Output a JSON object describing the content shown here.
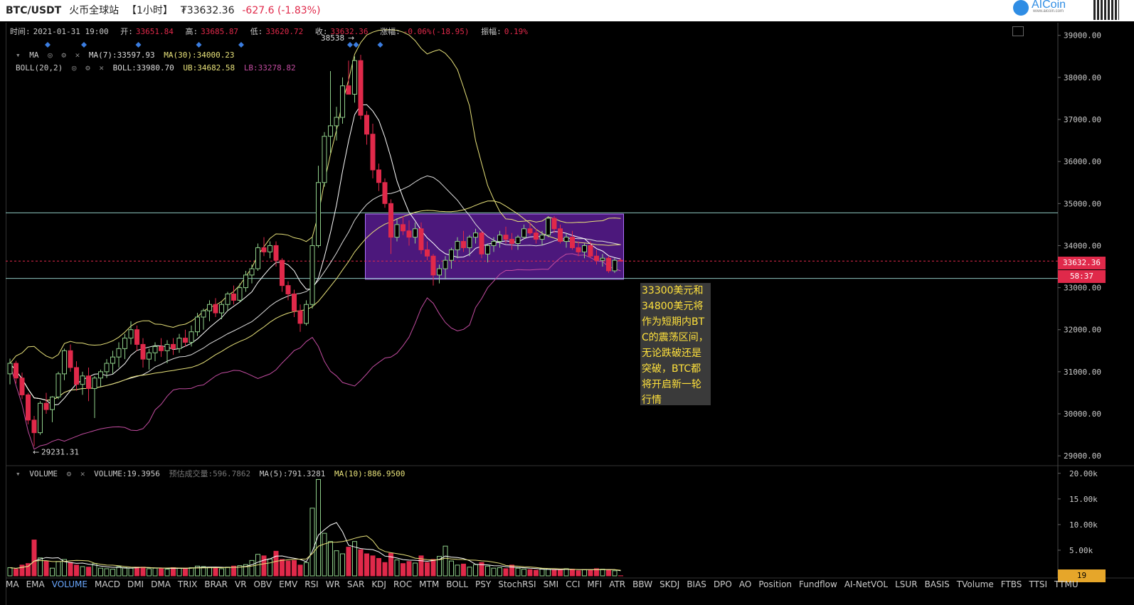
{
  "header": {
    "pair": "BTC/USDT",
    "exchange": "火币全球站",
    "interval": "【1小时】",
    "price": "₮33632.36",
    "change": "-627.6 (-1.83%)",
    "logo_text": "AICoin",
    "logo_sub": "www.aicoin.com"
  },
  "info": {
    "time_label": "时间:",
    "time": "2021-01-31 19:00",
    "open_label": "开:",
    "open": "33651.84",
    "high_label": "高:",
    "high": "33685.87",
    "low_label": "低:",
    "low": "33620.72",
    "close_label": "收:",
    "close": "33632.36",
    "chg_label": "涨幅:",
    "chg": "-0.06%(-18.95)",
    "amp_label": "振幅:",
    "amp": "0.19%"
  },
  "indicators": {
    "ma_name": "MA",
    "ma7": "MA(7):33597.93",
    "ma30": "MA(30):34000.23",
    "boll_name": "BOLL(20,2)",
    "boll": "BOLL:33980.70",
    "ub": "UB:34682.58",
    "lb": "LB:33278.82",
    "vol_name": "VOLUME",
    "vol": "VOLUME:19.3956",
    "vol_est": "预估成交量:596.7862",
    "vol_ma5": "MA(5):791.3281",
    "vol_ma10": "MA(10):886.9500"
  },
  "annotation": "33300美元和34800美元将作为短期内BTC的震荡区间，无论跌破还是突破，BTC都将开启新一轮行情",
  "tags": {
    "price": "33632.36",
    "countdown": "58:37",
    "volume": "19"
  },
  "tabs": [
    "MA",
    "EMA",
    "VOLUME",
    "MACD",
    "DMI",
    "DMA",
    "TRIX",
    "BRAR",
    "VR",
    "OBV",
    "EMV",
    "RSI",
    "WR",
    "SAR",
    "KDJ",
    "ROC",
    "MTM",
    "BOLL",
    "PSY",
    "StochRSI",
    "SMI",
    "CCI",
    "MFI",
    "ATR",
    "BBW",
    "SKDJ",
    "BIAS",
    "DPO",
    "AO",
    "Position",
    "Fundflow",
    "AI-NetVOL",
    "LSUR",
    "BASIS",
    "TVolume",
    "FTBS",
    "TTSI",
    "TTMU"
  ],
  "active_tab": "VOLUME",
  "colors": {
    "up": "#8fcf8a",
    "down": "#e0294a",
    "ma7": "#ffffff",
    "ma30": "#e8e27a",
    "ub": "#e8e27a",
    "lb": "#c24ca0",
    "box": "#8a2be2",
    "hline": "#8ec6c0"
  },
  "chart_data": {
    "type": "candlestick",
    "price_axis": {
      "ylim": [
        28800,
        39300
      ],
      "ticks": [
        29000,
        30000,
        31000,
        32000,
        33000,
        34000,
        35000,
        36000,
        37000,
        38000,
        39000
      ],
      "tick_labels": [
        "29000.00",
        "30000.00",
        "31000.00",
        "32000.00",
        "33000.00",
        "34000.00",
        "35000.00",
        "36000.00",
        "37000.00",
        "38000.00",
        "39000.00"
      ]
    },
    "volume_axis": {
      "ylim": [
        0,
        20800
      ],
      "ticks": [
        5000,
        10000,
        15000,
        20000
      ],
      "tick_labels": [
        "5.00k",
        "10.00k",
        "15.00k",
        "20.00k"
      ]
    },
    "high_marker": {
      "value": 38538,
      "label": "38538"
    },
    "low_marker": {
      "value": 29231.31,
      "label": "29231.31"
    },
    "range_box": {
      "low": 33200,
      "high": 34750
    },
    "hlines": [
      34780,
      33220
    ],
    "current_price": 33632.36,
    "candles": [
      [
        30950,
        31310,
        30700,
        31200
      ],
      [
        31200,
        31260,
        30720,
        30850
      ],
      [
        30850,
        30980,
        30350,
        30450
      ],
      [
        30450,
        30500,
        29750,
        29850
      ],
      [
        29850,
        29950,
        29231,
        29550
      ],
      [
        29550,
        30300,
        29500,
        30250
      ],
      [
        30250,
        30500,
        30000,
        30100
      ],
      [
        30100,
        30420,
        29800,
        30400
      ],
      [
        30400,
        31000,
        30350,
        30950
      ],
      [
        30950,
        31550,
        30800,
        31500
      ],
      [
        31500,
        31650,
        31000,
        31100
      ],
      [
        31100,
        31250,
        30550,
        30700
      ],
      [
        30700,
        31000,
        30450,
        30900
      ],
      [
        30900,
        31100,
        30300,
        30600
      ],
      [
        30600,
        30900,
        29900,
        30850
      ],
      [
        30850,
        31050,
        30650,
        31000
      ],
      [
        31000,
        31300,
        30850,
        31200
      ],
      [
        31200,
        31500,
        30950,
        31350
      ],
      [
        31350,
        31700,
        31100,
        31550
      ],
      [
        31550,
        31900,
        31300,
        31800
      ],
      [
        31800,
        32200,
        31650,
        32000
      ],
      [
        32000,
        32100,
        31500,
        31650
      ],
      [
        31650,
        31800,
        31100,
        31300
      ],
      [
        31300,
        31550,
        31050,
        31450
      ],
      [
        31450,
        31700,
        31250,
        31600
      ],
      [
        31600,
        31800,
        31350,
        31500
      ],
      [
        31500,
        31750,
        31200,
        31650
      ],
      [
        31650,
        31800,
        31400,
        31550
      ],
      [
        31550,
        31900,
        31450,
        31800
      ],
      [
        31800,
        32000,
        31600,
        31700
      ],
      [
        31700,
        32100,
        31600,
        31950
      ],
      [
        31950,
        32400,
        31850,
        32300
      ],
      [
        32300,
        32500,
        32000,
        32450
      ],
      [
        32450,
        32700,
        32200,
        32600
      ],
      [
        32600,
        32750,
        32300,
        32400
      ],
      [
        32400,
        32650,
        32250,
        32600
      ],
      [
        32600,
        32900,
        32450,
        32850
      ],
      [
        32850,
        33050,
        32600,
        32700
      ],
      [
        32700,
        33100,
        32650,
        33000
      ],
      [
        33000,
        33400,
        32900,
        33300
      ],
      [
        33300,
        33550,
        33100,
        33450
      ],
      [
        33450,
        34050,
        33400,
        33950
      ],
      [
        33950,
        34200,
        33750,
        33850
      ],
      [
        33850,
        34100,
        33700,
        34000
      ],
      [
        34000,
        34100,
        33500,
        33650
      ],
      [
        33650,
        33700,
        32900,
        33050
      ],
      [
        33050,
        33150,
        32700,
        32850
      ],
      [
        32850,
        32950,
        32300,
        32450
      ],
      [
        32450,
        32600,
        31950,
        32150
      ],
      [
        32150,
        32700,
        32100,
        32600
      ],
      [
        32600,
        34200,
        32500,
        34000
      ],
      [
        34000,
        35900,
        33950,
        35500
      ],
      [
        35500,
        36700,
        35400,
        36600
      ],
      [
        36600,
        38150,
        36200,
        36850
      ],
      [
        36850,
        37300,
        36500,
        37050
      ],
      [
        37050,
        38000,
        36900,
        37800
      ],
      [
        37800,
        38400,
        37600,
        37600
      ],
      [
        37600,
        38500,
        37400,
        38400
      ],
      [
        38400,
        38538,
        37000,
        37100
      ],
      [
        37100,
        37200,
        36400,
        36650
      ],
      [
        36650,
        36900,
        35600,
        35800
      ],
      [
        35800,
        35950,
        35300,
        35500
      ],
      [
        35500,
        35600,
        34900,
        35000
      ],
      [
        35000,
        35100,
        33800,
        34200
      ],
      [
        34200,
        34650,
        34100,
        34500
      ],
      [
        34500,
        34700,
        34250,
        34350
      ],
      [
        34350,
        34600,
        34000,
        34200
      ],
      [
        34200,
        34550,
        34050,
        34400
      ],
      [
        34400,
        34550,
        33800,
        33900
      ],
      [
        33900,
        34100,
        33650,
        33750
      ],
      [
        33750,
        33800,
        33050,
        33300
      ],
      [
        33300,
        33550,
        33100,
        33450
      ],
      [
        33450,
        33750,
        33200,
        33650
      ],
      [
        33650,
        33950,
        33450,
        33900
      ],
      [
        33900,
        34200,
        33700,
        34100
      ],
      [
        34100,
        34350,
        33850,
        33950
      ],
      [
        33950,
        34250,
        33750,
        34200
      ],
      [
        34200,
        34400,
        34050,
        34300
      ],
      [
        34300,
        34350,
        33700,
        33800
      ],
      [
        33800,
        34050,
        33600,
        34000
      ],
      [
        34000,
        34200,
        33850,
        34100
      ],
      [
        34100,
        34350,
        33950,
        34250
      ],
      [
        34250,
        34450,
        34050,
        34150
      ],
      [
        34150,
        34300,
        33900,
        34050
      ],
      [
        34050,
        34250,
        33900,
        34200
      ],
      [
        34200,
        34500,
        34150,
        34400
      ],
      [
        34400,
        34550,
        34250,
        34300
      ],
      [
        34300,
        34400,
        34050,
        34150
      ],
      [
        34150,
        34350,
        34000,
        34250
      ],
      [
        34250,
        34700,
        34200,
        34650
      ],
      [
        34650,
        34700,
        34300,
        34400
      ],
      [
        34400,
        34500,
        34050,
        34100
      ],
      [
        34100,
        34300,
        33950,
        34200
      ],
      [
        34200,
        34350,
        33900,
        33950
      ],
      [
        33950,
        34100,
        33750,
        33850
      ],
      [
        33850,
        34050,
        33700,
        34000
      ],
      [
        34000,
        34100,
        33700,
        33750
      ],
      [
        33750,
        33900,
        33550,
        33650
      ],
      [
        33650,
        33800,
        33500,
        33700
      ],
      [
        33700,
        33750,
        33350,
        33400
      ],
      [
        33400,
        33700,
        33350,
        33650
      ],
      [
        33650,
        33690,
        33620,
        33632
      ]
    ],
    "volumes": [
      1600,
      1300,
      2100,
      2400,
      7000,
      3500,
      2900,
      1500,
      2800,
      3200,
      2600,
      2100,
      1800,
      1700,
      2400,
      1500,
      1400,
      1300,
      1800,
      1600,
      1500,
      1700,
      1700,
      1400,
      1500,
      1400,
      1300,
      1600,
      1500,
      1500,
      1600,
      1900,
      1800,
      1700,
      1600,
      1400,
      1700,
      1900,
      2000,
      2200,
      3000,
      4200,
      3900,
      3300,
      4800,
      3200,
      2900,
      3000,
      2100,
      2600,
      13200,
      18800,
      8300,
      6700,
      4900,
      4300,
      5600,
      6700,
      5100,
      4300,
      3900,
      3400,
      2600,
      4400,
      3100,
      2400,
      2800,
      2500,
      3900,
      2600,
      3200,
      3800,
      5800,
      2900,
      2100,
      2300,
      1700,
      2200,
      2600,
      1900,
      1500,
      1600,
      1400,
      2100,
      1500,
      1300,
      1200,
      1100,
      1400,
      1300,
      1200,
      1100,
      1400,
      1300,
      1000,
      1200,
      1100,
      1400,
      1300,
      1200,
      1000,
      19
    ]
  }
}
